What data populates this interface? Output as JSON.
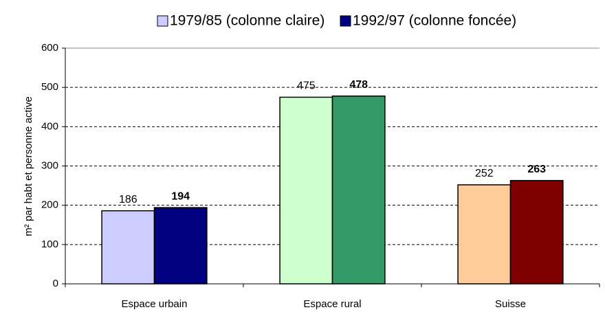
{
  "chart_data": {
    "type": "bar",
    "y_label": "m² par habt et personne active",
    "categories": [
      "Espace urbain",
      "Espace rural",
      "Suisse"
    ],
    "series": [
      {
        "name": "1979/85 (colonne claire)",
        "color": "#ccccff",
        "colors": [
          "#ccccff",
          "#ccffcc",
          "#ffcc99"
        ],
        "values": [
          186,
          475,
          252
        ]
      },
      {
        "name": "1992/97 (colonne foncée)",
        "color": "#000080",
        "colors": [
          "#000080",
          "#339966",
          "#800000"
        ],
        "values": [
          194,
          478,
          263
        ]
      }
    ],
    "ylim": [
      0,
      600
    ],
    "yticks": [
      0,
      100,
      200,
      300,
      400,
      500,
      600
    ],
    "grid": true,
    "legend": "top"
  }
}
